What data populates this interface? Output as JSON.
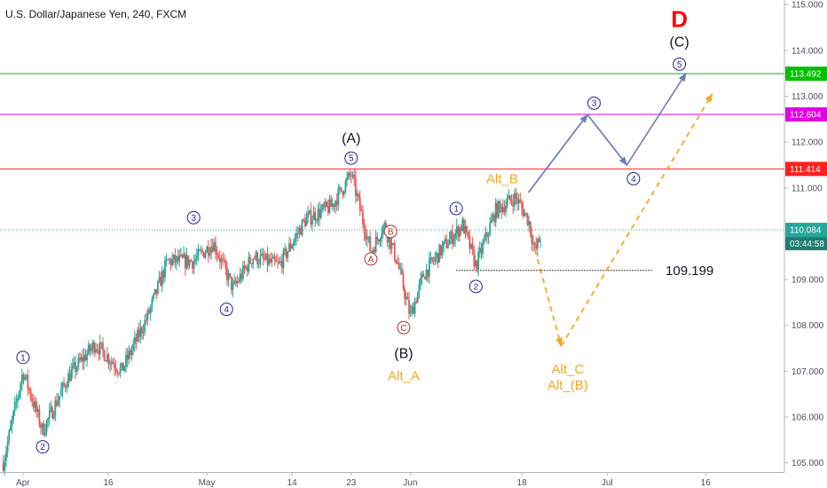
{
  "title": "U.S. Dollar/Japanese Yen, 240, FXCM",
  "colors": {
    "up": "#26a69a",
    "down": "#ef5350",
    "wave_circle": "#1f1fa0",
    "alt_circle": "#b23131",
    "orange": "#f5a623",
    "arrow_blue": "#6d7fbd",
    "line_green": "#00c000",
    "line_magenta": "#e000e0",
    "line_red": "#ff2020",
    "price_teal": "#26a69a",
    "price_teal_dark": "#1d7d70"
  },
  "chart_data": {
    "type": "candlestick",
    "symbol": "U.S. Dollar/Japanese Yen",
    "interval": "240",
    "source": "FXCM",
    "y_axis": {
      "min": 104.8,
      "max": 115.1,
      "ticks": [
        "105.000",
        "106.000",
        "107.000",
        "108.000",
        "109.000",
        "110.000",
        "111.000",
        "112.000",
        "113.000",
        "114.000",
        "115.000"
      ]
    },
    "x_axis": {
      "ticks": [
        {
          "label": "Apr",
          "day": 3
        },
        {
          "label": "16",
          "day": 16
        },
        {
          "label": "May",
          "day": 31
        },
        {
          "label": "14",
          "day": 44
        },
        {
          "label": "23",
          "day": 53
        },
        {
          "label": "Jun",
          "day": 62
        },
        {
          "label": "18",
          "day": 79
        },
        {
          "label": "Jul",
          "day": 92
        },
        {
          "label": "16",
          "day": 107
        }
      ],
      "day_range": [
        -0.5,
        119
      ]
    },
    "price_path": [
      {
        "day": 0,
        "price": 105.0
      },
      {
        "day": 3,
        "price": 107.0
      },
      {
        "day": 6,
        "price": 105.7
      },
      {
        "day": 10,
        "price": 106.9
      },
      {
        "day": 14,
        "price": 107.6
      },
      {
        "day": 18,
        "price": 107.0
      },
      {
        "day": 22,
        "price": 108.2
      },
      {
        "day": 25,
        "price": 109.4
      },
      {
        "day": 29,
        "price": 109.4
      },
      {
        "day": 32,
        "price": 109.8
      },
      {
        "day": 35,
        "price": 108.8
      },
      {
        "day": 38,
        "price": 109.5
      },
      {
        "day": 42,
        "price": 109.3
      },
      {
        "day": 46,
        "price": 110.3
      },
      {
        "day": 50,
        "price": 110.6
      },
      {
        "day": 53,
        "price": 111.3
      },
      {
        "day": 56,
        "price": 109.6
      },
      {
        "day": 58,
        "price": 110.2
      },
      {
        "day": 60,
        "price": 109.4
      },
      {
        "day": 62,
        "price": 108.2
      },
      {
        "day": 64,
        "price": 109.1
      },
      {
        "day": 67,
        "price": 109.7
      },
      {
        "day": 70,
        "price": 110.2
      },
      {
        "day": 72,
        "price": 109.3
      },
      {
        "day": 75,
        "price": 110.5
      },
      {
        "day": 78,
        "price": 110.8
      },
      {
        "day": 80,
        "price": 110.3
      },
      {
        "day": 81,
        "price": 109.6
      },
      {
        "day": 82,
        "price": 110.0
      }
    ],
    "horizontal_lines": [
      {
        "price": 113.492,
        "label": "113.492",
        "color": "#00c000"
      },
      {
        "price": 112.604,
        "label": "112.604",
        "color": "#e000e0"
      },
      {
        "price": 111.414,
        "label": "111.414",
        "color": "#ff2020"
      }
    ],
    "current_price": {
      "price": 110.084,
      "label": "110.084",
      "countdown": "03:44:58"
    },
    "support_level": {
      "price": 109.199,
      "label": "109.199",
      "day_start": 69,
      "day_end": 99
    },
    "waves": [
      {
        "text": "1",
        "day": 3,
        "price": 107.3,
        "style": "circle"
      },
      {
        "text": "2",
        "day": 6,
        "price": 105.35,
        "style": "circle"
      },
      {
        "text": "3",
        "day": 29,
        "price": 110.35,
        "style": "circle"
      },
      {
        "text": "4",
        "day": 34,
        "price": 108.35,
        "style": "circle"
      },
      {
        "text": "5",
        "day": 53,
        "price": 111.65,
        "style": "circle"
      },
      {
        "text": "(A)",
        "day": 53,
        "price": 112.1,
        "style": "plain"
      },
      {
        "text": "A",
        "day": 56,
        "price": 109.45,
        "style": "alt_circle"
      },
      {
        "text": "B",
        "day": 59,
        "price": 110.05,
        "style": "alt_circle"
      },
      {
        "text": "C",
        "day": 61,
        "price": 107.95,
        "style": "alt_circle"
      },
      {
        "text": "(B)",
        "day": 61,
        "price": 107.4,
        "style": "plain"
      },
      {
        "text": "Alt_A",
        "day": 61,
        "price": 106.9,
        "style": "orange"
      },
      {
        "text": "1",
        "day": 69,
        "price": 110.55,
        "style": "circle"
      },
      {
        "text": "2",
        "day": 72,
        "price": 108.85,
        "style": "circle"
      },
      {
        "text": "Alt_B",
        "day": 76,
        "price": 111.2,
        "style": "orange"
      },
      {
        "text": "3",
        "day": 90,
        "price": 112.85,
        "style": "circle"
      },
      {
        "text": "4",
        "day": 96,
        "price": 111.2,
        "style": "circle"
      },
      {
        "text": "5",
        "day": 103,
        "price": 113.7,
        "style": "circle"
      },
      {
        "text": "(C)",
        "day": 103,
        "price": 114.2,
        "style": "plain"
      },
      {
        "text": "D",
        "day": 103,
        "price": 114.7,
        "style": "big_red"
      },
      {
        "text": "Alt_C",
        "day": 86,
        "price": 107.05,
        "style": "orange"
      },
      {
        "text": "Alt_(B)",
        "day": 86,
        "price": 106.7,
        "style": "orange"
      }
    ],
    "projection_blue": [
      {
        "day": 80,
        "price": 110.9
      },
      {
        "day": 89,
        "price": 112.6
      },
      {
        "day": 95,
        "price": 111.5
      },
      {
        "day": 104,
        "price": 113.5
      }
    ],
    "projection_orange": [
      {
        "day": 81,
        "price": 109.65
      },
      {
        "day": 85,
        "price": 107.55
      },
      {
        "day": 108,
        "price": 113.05
      }
    ]
  }
}
